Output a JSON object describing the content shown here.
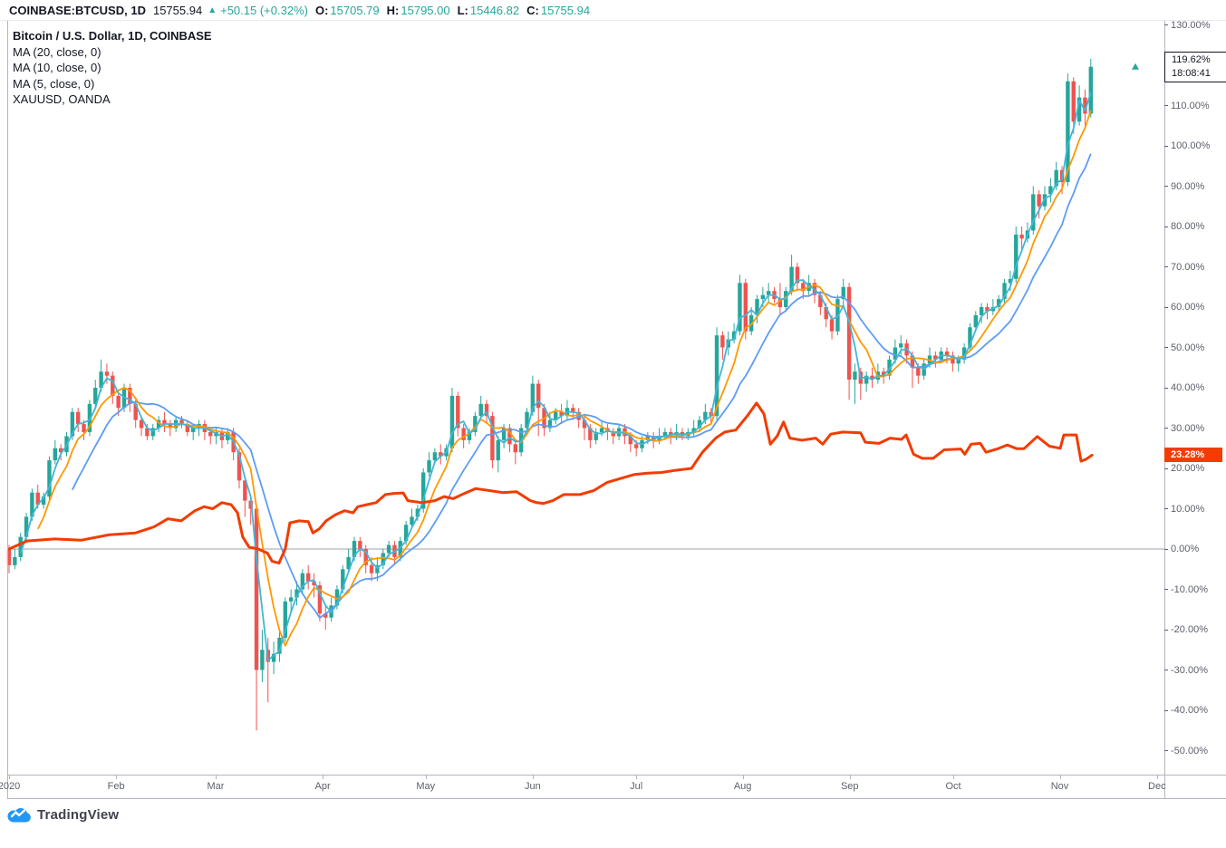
{
  "header": {
    "symbol": "COINBASE:BTCUSD, 1D",
    "last_price": "15755.94",
    "up_arrow": "▲",
    "change": "+50.15 (+0.32%)",
    "ohlc": [
      {
        "label": "O:",
        "value": "15705.79"
      },
      {
        "label": "H:",
        "value": "15795.00"
      },
      {
        "label": "L:",
        "value": "15446.82"
      },
      {
        "label": "C:",
        "value": "15755.94"
      }
    ]
  },
  "legend": {
    "title": "Bitcoin / U.S. Dollar, 1D, COINBASE",
    "items": [
      "MA (20, close, 0)",
      "MA (10, close, 0)",
      "MA (5, close, 0)",
      "XAUUSD, OANDA"
    ]
  },
  "axis": {
    "y_tick_labels": [
      "130.00%",
      "110.00%",
      "100.00%",
      "90.00%",
      "80.00%",
      "70.00%",
      "60.00%",
      "50.00%",
      "40.00%",
      "30.00%",
      "20.00%",
      "10.00%",
      "0.00%",
      "-10.00%",
      "-20.00%",
      "-30.00%",
      "-40.00%",
      "-50.00%"
    ],
    "price_label": "119.62%",
    "countdown": "18:08:41",
    "gold_label": "23.28%"
  },
  "footer": {
    "brand": "TradingView"
  },
  "colors": {
    "up": "#26a69a",
    "down": "#ef5350",
    "ma20": "#5d9cf5",
    "ma10": "#ff9800",
    "ma5": "#41b6d6",
    "compare": "#f23c00",
    "baseline": "#9da0a8",
    "text": "#131722",
    "axis_text": "#5d606b",
    "logo_blue": "#2196f3"
  },
  "chart_data": {
    "type": "candlestick_with_compare_line",
    "title": "Bitcoin / U.S. Dollar vs XAUUSD, % change, Jan–Nov 2020",
    "y_unit": "percent change",
    "y_ticks": [
      130,
      110,
      100,
      90,
      80,
      70,
      60,
      50,
      40,
      30,
      20,
      10,
      0,
      -10,
      -20,
      -30,
      -40,
      -50
    ],
    "baseline_value": 0,
    "grid": "off",
    "last_btc_pct": 119.62,
    "last_gold_pct": 23.28,
    "x_ticks": [
      {
        "label": "2020",
        "i": 0
      },
      {
        "label": "Feb",
        "i": 18.6
      },
      {
        "label": "Mar",
        "i": 35.9
      },
      {
        "label": "Apr",
        "i": 54.5
      },
      {
        "label": "May",
        "i": 72.4
      },
      {
        "label": "Jun",
        "i": 91
      },
      {
        "label": "Jul",
        "i": 109
      },
      {
        "label": "Aug",
        "i": 127.5
      },
      {
        "label": "Sep",
        "i": 146.1
      },
      {
        "label": "Oct",
        "i": 164.1
      },
      {
        "label": "Nov",
        "i": 182.6
      },
      {
        "label": "Dec",
        "i": 199.5
      }
    ],
    "moving_averages": [
      {
        "name": "MA 20 close",
        "period": 20,
        "color": "#5d9cf5"
      },
      {
        "name": "MA 10 close",
        "period": 10,
        "color": "#ff9800"
      },
      {
        "name": "MA 5 close",
        "period": 5,
        "color": "#41b6d6"
      }
    ],
    "candles_ohlc_pct": [
      [
        0,
        1,
        -6,
        -4
      ],
      [
        -4,
        0,
        -5,
        -2
      ],
      [
        -2,
        4,
        -3,
        3
      ],
      [
        3,
        9,
        2,
        8
      ],
      [
        8,
        15,
        7,
        14
      ],
      [
        14,
        16,
        10,
        11
      ],
      [
        11,
        14,
        10,
        13
      ],
      [
        13,
        23,
        12,
        22
      ],
      [
        22,
        27,
        21,
        25
      ],
      [
        25,
        26,
        22,
        24
      ],
      [
        24,
        29,
        23,
        28
      ],
      [
        28,
        35,
        27,
        34
      ],
      [
        34,
        35,
        29,
        31
      ],
      [
        31,
        32,
        27,
        29
      ],
      [
        29,
        37,
        28,
        36
      ],
      [
        36,
        42,
        35,
        40
      ],
      [
        40,
        47,
        39,
        44
      ],
      [
        44,
        46,
        41,
        43
      ],
      [
        43,
        44,
        36,
        38
      ],
      [
        38,
        39,
        33,
        35
      ],
      [
        35,
        41,
        34,
        40
      ],
      [
        40,
        41,
        34,
        36
      ],
      [
        36,
        37,
        30,
        32
      ],
      [
        32,
        33,
        28,
        30
      ],
      [
        30,
        31,
        27,
        28
      ],
      [
        28,
        31,
        27,
        30
      ],
      [
        30,
        33,
        29,
        32
      ],
      [
        32,
        34,
        29,
        31
      ],
      [
        31,
        32,
        28,
        30
      ],
      [
        30,
        33,
        29,
        32
      ],
      [
        32,
        33,
        30,
        31
      ],
      [
        31,
        32,
        28,
        29
      ],
      [
        29,
        31,
        27,
        30
      ],
      [
        30,
        32,
        28,
        31
      ],
      [
        31,
        32,
        27,
        29
      ],
      [
        29,
        30,
        26,
        28
      ],
      [
        28,
        30,
        26,
        29
      ],
      [
        29,
        30,
        25,
        27
      ],
      [
        27,
        30,
        26,
        29
      ],
      [
        29,
        30,
        22,
        24
      ],
      [
        24,
        25,
        15,
        17
      ],
      [
        17,
        18,
        8,
        12
      ],
      [
        12,
        13,
        6,
        10
      ],
      [
        10,
        10,
        -45,
        -30
      ],
      [
        -30,
        -20,
        -33,
        -25
      ],
      [
        -25,
        -22,
        -38,
        -28
      ],
      [
        -28,
        -23,
        -31,
        -26
      ],
      [
        -26,
        -20,
        -28,
        -22
      ],
      [
        -22,
        -12,
        -23,
        -13
      ],
      [
        -13,
        -10,
        -16,
        -12
      ],
      [
        -12,
        -8,
        -14,
        -10
      ],
      [
        -10,
        -5,
        -11,
        -6
      ],
      [
        -6,
        -4,
        -10,
        -8
      ],
      [
        -8,
        -6,
        -12,
        -9
      ],
      [
        -9,
        -8,
        -18,
        -16
      ],
      [
        -16,
        -14,
        -20,
        -17
      ],
      [
        -17,
        -12,
        -18,
        -14
      ],
      [
        -14,
        -9,
        -15,
        -10
      ],
      [
        -10,
        -4,
        -11,
        -5
      ],
      [
        -5,
        0,
        -6,
        -2
      ],
      [
        -2,
        3,
        -3,
        2
      ],
      [
        2,
        3,
        -2,
        0
      ],
      [
        0,
        1,
        -6,
        -4
      ],
      [
        -4,
        -2,
        -8,
        -6
      ],
      [
        -6,
        -2,
        -8,
        -4
      ],
      [
        -4,
        0,
        -5,
        -1
      ],
      [
        -1,
        2,
        -2,
        1
      ],
      [
        1,
        2,
        -4,
        -2
      ],
      [
        -2,
        3,
        -3,
        2
      ],
      [
        2,
        7,
        1,
        6
      ],
      [
        6,
        10,
        5,
        8
      ],
      [
        8,
        11,
        7,
        10
      ],
      [
        10,
        20,
        9,
        19
      ],
      [
        19,
        24,
        18,
        22
      ],
      [
        22,
        25,
        21,
        24
      ],
      [
        24,
        26,
        21,
        23
      ],
      [
        23,
        26,
        22,
        25
      ],
      [
        25,
        40,
        24,
        38
      ],
      [
        38,
        39,
        28,
        30
      ],
      [
        30,
        31,
        25,
        27
      ],
      [
        27,
        30,
        26,
        29
      ],
      [
        29,
        34,
        28,
        33
      ],
      [
        33,
        38,
        32,
        36
      ],
      [
        36,
        37,
        31,
        33
      ],
      [
        33,
        34,
        20,
        22
      ],
      [
        22,
        28,
        19,
        27
      ],
      [
        27,
        31,
        25,
        30
      ],
      [
        30,
        31,
        24,
        26
      ],
      [
        26,
        27,
        21,
        24
      ],
      [
        24,
        31,
        23,
        30
      ],
      [
        30,
        35,
        29,
        34
      ],
      [
        34,
        43,
        33,
        41
      ],
      [
        41,
        42,
        28,
        35
      ],
      [
        35,
        36,
        28,
        30
      ],
      [
        30,
        34,
        29,
        32
      ],
      [
        32,
        35,
        31,
        34
      ],
      [
        34,
        36,
        31,
        33
      ],
      [
        33,
        37,
        32,
        35
      ],
      [
        35,
        36,
        32,
        34
      ],
      [
        34,
        35,
        30,
        32
      ],
      [
        32,
        33,
        27,
        30
      ],
      [
        30,
        31,
        25,
        27
      ],
      [
        27,
        30,
        26,
        29
      ],
      [
        29,
        32,
        28,
        30
      ],
      [
        30,
        31,
        27,
        29
      ],
      [
        29,
        30,
        26,
        28
      ],
      [
        28,
        31,
        27,
        30
      ],
      [
        30,
        31,
        26,
        28
      ],
      [
        28,
        29,
        24,
        26
      ],
      [
        26,
        27,
        23,
        25
      ],
      [
        25,
        28,
        24,
        27
      ],
      [
        27,
        29,
        26,
        28
      ],
      [
        28,
        29,
        25,
        27
      ],
      [
        27,
        30,
        26,
        28
      ],
      [
        28,
        30,
        27,
        29
      ],
      [
        29,
        30,
        26,
        28
      ],
      [
        28,
        31,
        27,
        29
      ],
      [
        29,
        30,
        27,
        28
      ],
      [
        28,
        30,
        27,
        29
      ],
      [
        29,
        32,
        28,
        30
      ],
      [
        30,
        33,
        29,
        32
      ],
      [
        32,
        36,
        31,
        34
      ],
      [
        34,
        35,
        31,
        33
      ],
      [
        33,
        55,
        32,
        53
      ],
      [
        53,
        54,
        47,
        50
      ],
      [
        50,
        54,
        48,
        52
      ],
      [
        52,
        56,
        51,
        54
      ],
      [
        54,
        68,
        53,
        66
      ],
      [
        66,
        67,
        52,
        54
      ],
      [
        54,
        60,
        53,
        58
      ],
      [
        58,
        63,
        56,
        62
      ],
      [
        62,
        65,
        60,
        63
      ],
      [
        63,
        66,
        61,
        64
      ],
      [
        64,
        65,
        61,
        62
      ],
      [
        62,
        66,
        58,
        60
      ],
      [
        60,
        65,
        59,
        64
      ],
      [
        64,
        73,
        63,
        70
      ],
      [
        70,
        71,
        64,
        66
      ],
      [
        66,
        67,
        62,
        64
      ],
      [
        64,
        68,
        63,
        66
      ],
      [
        66,
        67,
        61,
        63
      ],
      [
        63,
        64,
        58,
        60
      ],
      [
        60,
        61,
        55,
        57
      ],
      [
        57,
        58,
        52,
        54
      ],
      [
        54,
        63,
        53,
        62
      ],
      [
        62,
        67,
        60,
        65
      ],
      [
        65,
        66,
        37,
        42
      ],
      [
        42,
        46,
        36,
        44
      ],
      [
        44,
        45,
        37,
        41
      ],
      [
        41,
        44,
        39,
        43
      ],
      [
        43,
        45,
        40,
        42
      ],
      [
        42,
        46,
        41,
        44
      ],
      [
        44,
        45,
        41,
        43
      ],
      [
        43,
        48,
        42,
        47
      ],
      [
        47,
        52,
        46,
        50
      ],
      [
        50,
        53,
        48,
        51
      ],
      [
        51,
        52,
        46,
        48
      ],
      [
        48,
        49,
        40,
        45
      ],
      [
        45,
        46,
        41,
        43
      ],
      [
        43,
        47,
        42,
        46
      ],
      [
        46,
        50,
        45,
        48
      ],
      [
        48,
        49,
        45,
        47
      ],
      [
        47,
        50,
        46,
        49
      ],
      [
        49,
        50,
        46,
        48
      ],
      [
        48,
        49,
        44,
        46
      ],
      [
        46,
        48,
        44,
        47
      ],
      [
        47,
        51,
        46,
        50
      ],
      [
        50,
        56,
        49,
        55
      ],
      [
        55,
        59,
        54,
        58
      ],
      [
        58,
        61,
        56,
        60
      ],
      [
        60,
        61,
        57,
        59
      ],
      [
        59,
        62,
        58,
        60
      ],
      [
        60,
        63,
        59,
        62
      ],
      [
        62,
        67,
        61,
        66
      ],
      [
        66,
        69,
        64,
        67
      ],
      [
        67,
        80,
        66,
        78
      ],
      [
        78,
        80,
        74,
        77
      ],
      [
        77,
        81,
        76,
        79
      ],
      [
        79,
        90,
        78,
        88
      ],
      [
        88,
        89,
        82,
        85
      ],
      [
        85,
        90,
        84,
        88
      ],
      [
        88,
        92,
        86,
        90
      ],
      [
        90,
        96,
        89,
        94
      ],
      [
        94,
        95,
        88,
        91
      ],
      [
        91,
        118,
        90,
        116
      ],
      [
        116,
        117,
        103,
        106
      ],
      [
        106,
        115,
        105,
        112
      ],
      [
        112,
        114,
        105,
        108
      ],
      [
        108,
        121.6,
        107,
        119.62
      ]
    ],
    "compare_line_pct": [
      [
        0,
        0
      ],
      [
        3.1,
        2
      ],
      [
        7.9,
        2.5
      ],
      [
        12.6,
        2.2
      ],
      [
        17.3,
        3.5
      ],
      [
        22,
        4
      ],
      [
        25.2,
        5.5
      ],
      [
        27.6,
        7.5
      ],
      [
        29.9,
        7
      ],
      [
        32.3,
        9.5
      ],
      [
        33.9,
        10.5
      ],
      [
        35.4,
        10
      ],
      [
        37,
        11.5
      ],
      [
        38.6,
        11
      ],
      [
        39.7,
        9
      ],
      [
        40.6,
        3
      ],
      [
        41.7,
        0.5
      ],
      [
        43.3,
        0
      ],
      [
        44.9,
        -1
      ],
      [
        45.7,
        -3
      ],
      [
        46.9,
        -3.5
      ],
      [
        48,
        0
      ],
      [
        48.8,
        6.5
      ],
      [
        50.4,
        7
      ],
      [
        52,
        6.8
      ],
      [
        52.8,
        4
      ],
      [
        53.9,
        5
      ],
      [
        55.1,
        7
      ],
      [
        56.7,
        8.5
      ],
      [
        58.3,
        9.5
      ],
      [
        59.8,
        9
      ],
      [
        60.6,
        10.5
      ],
      [
        62.2,
        11
      ],
      [
        63.8,
        11.5
      ],
      [
        65.4,
        13.5
      ],
      [
        66.9,
        13.8
      ],
      [
        68.5,
        13.9
      ],
      [
        69.3,
        12
      ],
      [
        71.7,
        11.5
      ],
      [
        74,
        12
      ],
      [
        75.6,
        13
      ],
      [
        77.2,
        12.5
      ],
      [
        78.7,
        13.5
      ],
      [
        81.1,
        15
      ],
      [
        83.5,
        14.5
      ],
      [
        85.8,
        14
      ],
      [
        88.2,
        14.2
      ],
      [
        90.6,
        12
      ],
      [
        91.7,
        11.5
      ],
      [
        92.9,
        11.3
      ],
      [
        94.5,
        12
      ],
      [
        96.4,
        13.5
      ],
      [
        99.2,
        13.5
      ],
      [
        101.6,
        14.5
      ],
      [
        103.9,
        16.5
      ],
      [
        106.3,
        17.5
      ],
      [
        108.7,
        18.5
      ],
      [
        111,
        18.8
      ],
      [
        113.4,
        19
      ],
      [
        115.7,
        19.5
      ],
      [
        118.6,
        20
      ],
      [
        120.5,
        24
      ],
      [
        122.8,
        27.5
      ],
      [
        124.4,
        29
      ],
      [
        126.3,
        29.5
      ],
      [
        128.3,
        33
      ],
      [
        129.9,
        36.2
      ],
      [
        131.2,
        33.5
      ],
      [
        132.3,
        26
      ],
      [
        133.5,
        28
      ],
      [
        134.6,
        31.5
      ],
      [
        135.7,
        27.5
      ],
      [
        137.8,
        27
      ],
      [
        140.2,
        27.5
      ],
      [
        141.4,
        26
      ],
      [
        142.8,
        28.5
      ],
      [
        144.9,
        29
      ],
      [
        148,
        28.8
      ],
      [
        148.8,
        26.5
      ],
      [
        151.2,
        26.2
      ],
      [
        153.1,
        27.5
      ],
      [
        155.1,
        27.2
      ],
      [
        155.9,
        28.3
      ],
      [
        157.2,
        23.5
      ],
      [
        158.7,
        22.5
      ],
      [
        160.6,
        22.5
      ],
      [
        162.5,
        24.6
      ],
      [
        165.4,
        24.8
      ],
      [
        166.1,
        23.5
      ],
      [
        167.2,
        26
      ],
      [
        168.8,
        26.2
      ],
      [
        169.8,
        24
      ],
      [
        171.7,
        24.8
      ],
      [
        173.5,
        25.8
      ],
      [
        175.1,
        24.9
      ],
      [
        176.4,
        24.9
      ],
      [
        178.7,
        27.9
      ],
      [
        180.8,
        25.5
      ],
      [
        182.7,
        25
      ],
      [
        183.3,
        28.3
      ],
      [
        185.5,
        28.3
      ],
      [
        186.3,
        21.8
      ],
      [
        187.2,
        22.3
      ],
      [
        188.2,
        23.28
      ]
    ]
  }
}
